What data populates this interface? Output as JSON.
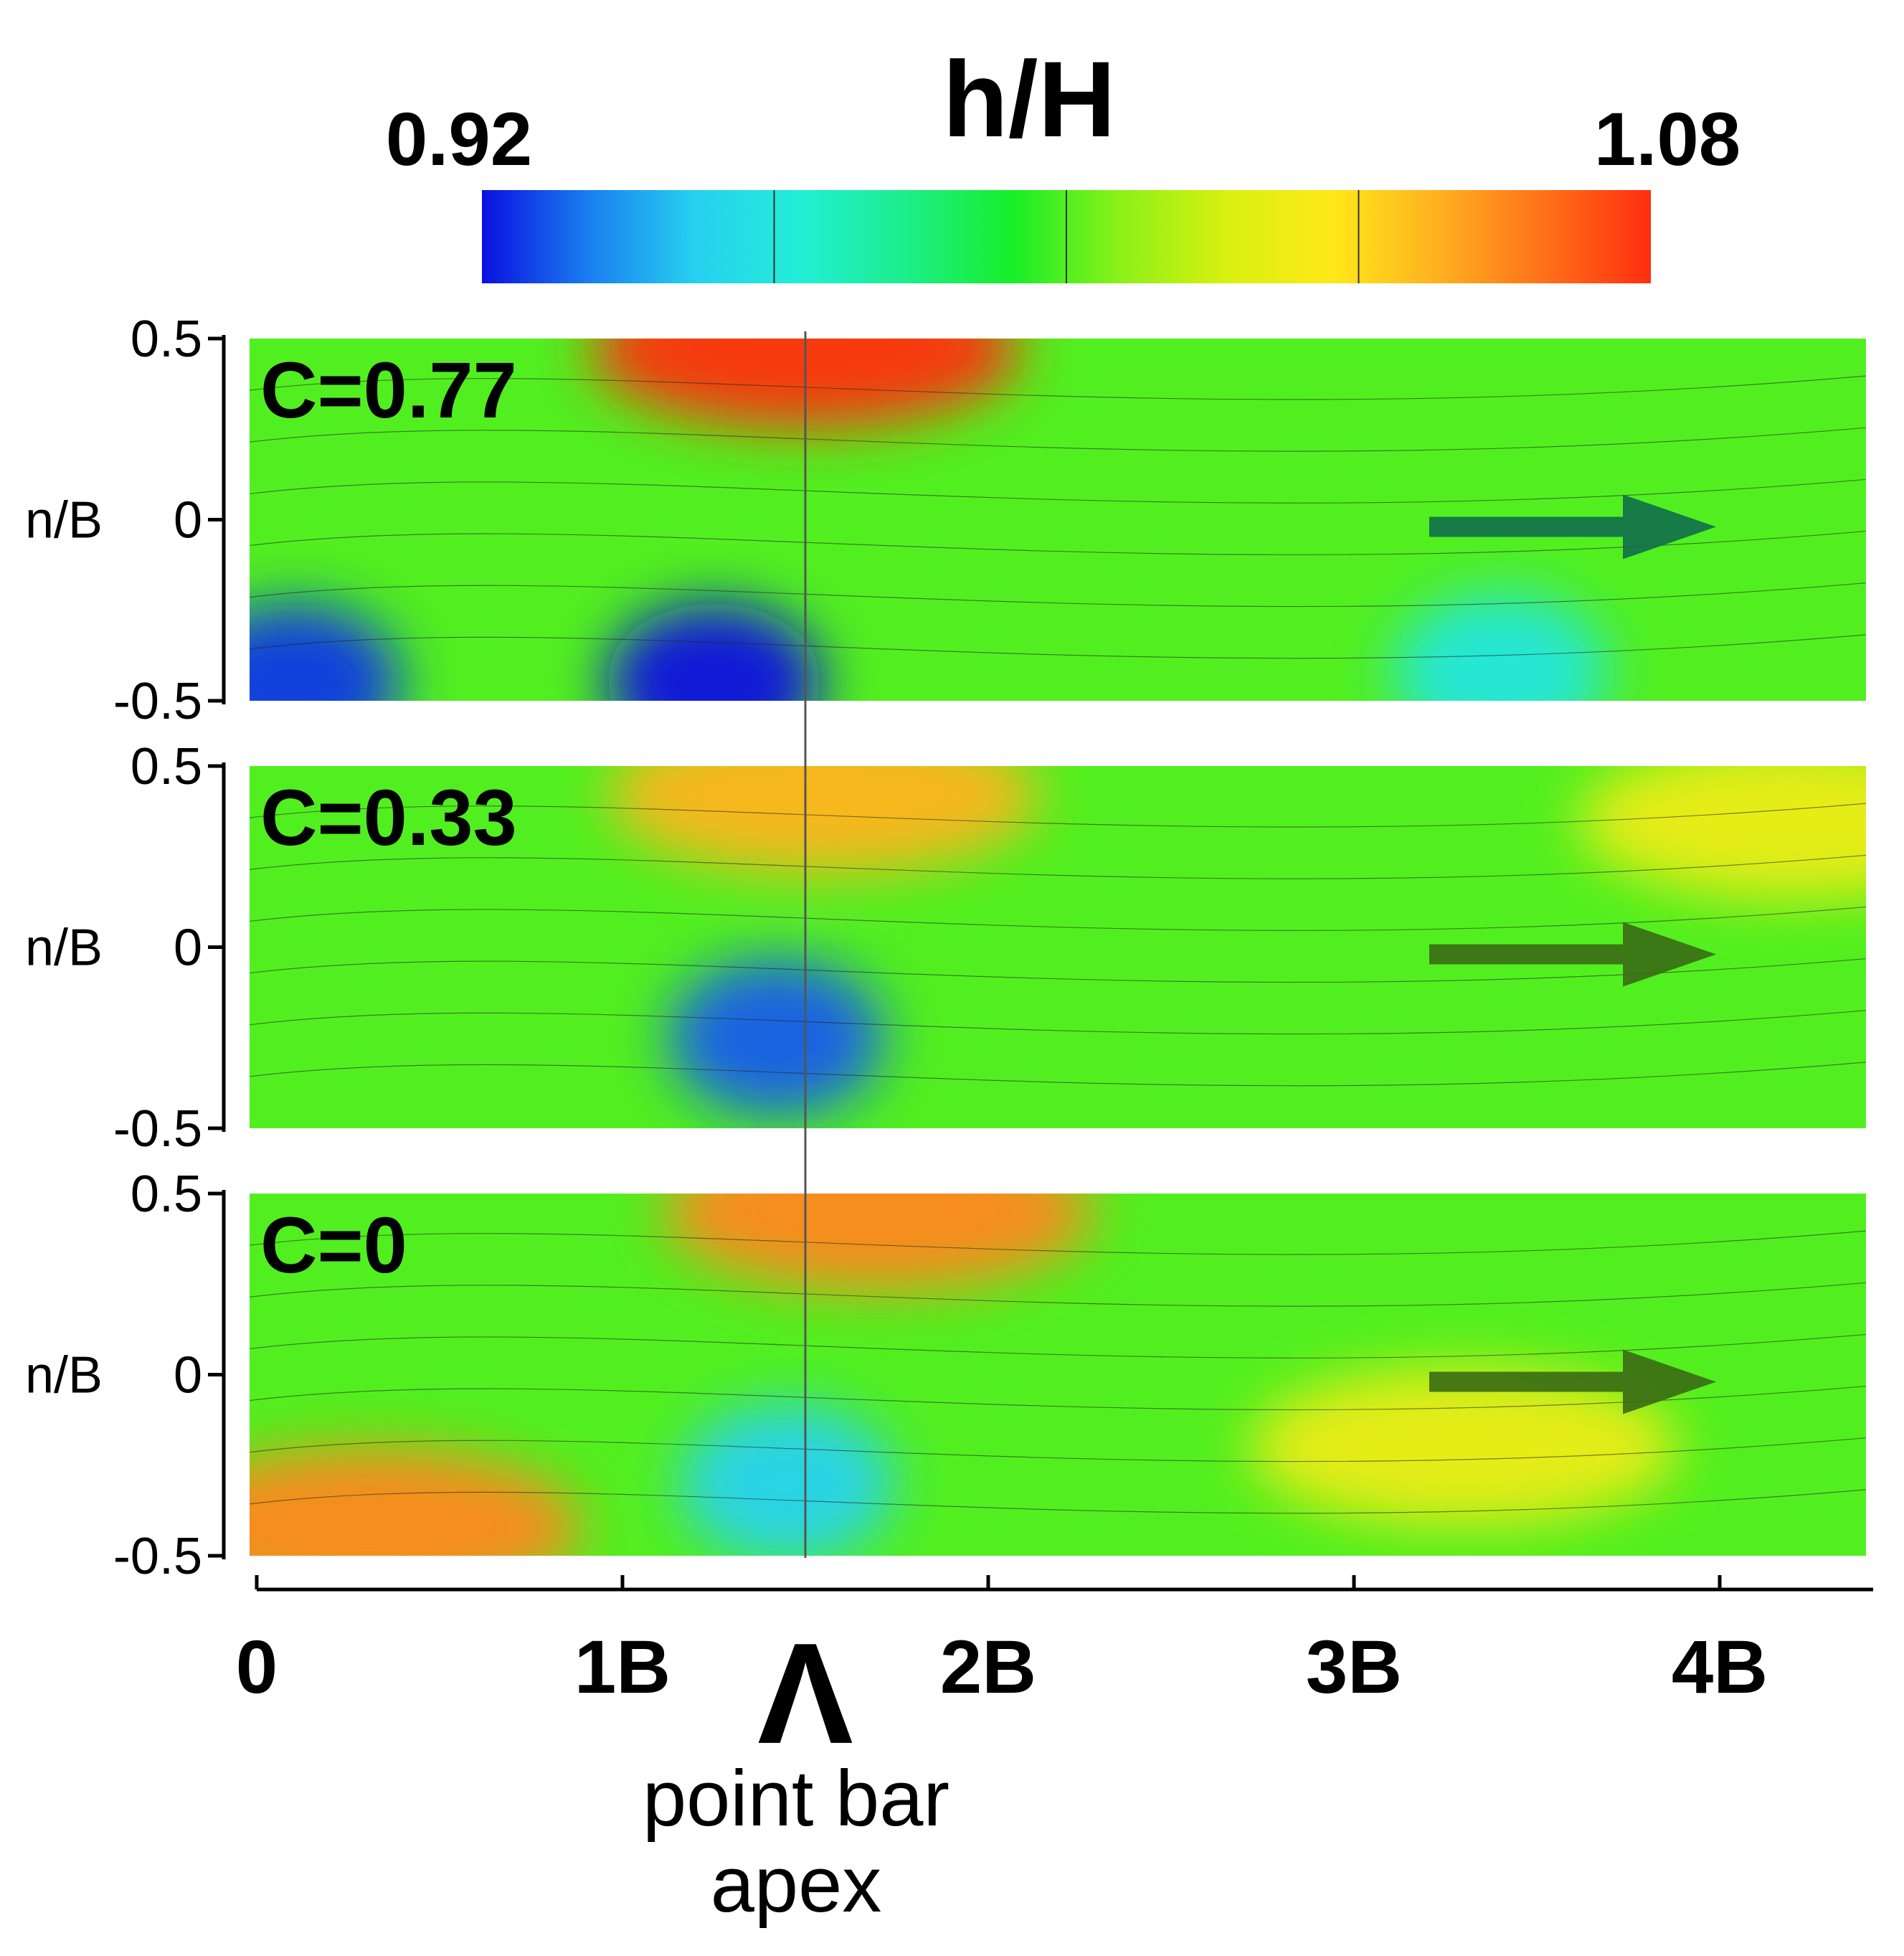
{
  "chart_data": {
    "type": "heatmap",
    "colorbar": {
      "title": "h/H",
      "min": 0.92,
      "max": 1.08,
      "min_label": "0.92",
      "max_label": "1.08",
      "colors": [
        "#0a10e0",
        "#1a7ef0",
        "#26d0f0",
        "#22eed6",
        "#1cee8a",
        "#18ee28",
        "#8cf018",
        "#d8f010",
        "#ffe818",
        "#ffb020",
        "#ff7018",
        "#ff2e10"
      ]
    },
    "x_ticks": [
      {
        "value": 0,
        "label": "0"
      },
      {
        "value": 1,
        "label": "1B"
      },
      {
        "value": 2,
        "label": "2B"
      },
      {
        "value": 3,
        "label": "3B"
      },
      {
        "value": 4,
        "label": "4B"
      }
    ],
    "xlim": [
      0,
      4.4
    ],
    "ylim": [
      -0.5,
      0.5
    ],
    "y_label": "n/B",
    "y_ticks": [
      {
        "value": 0.5,
        "label": "0.5"
      },
      {
        "value": 0,
        "label": "0"
      },
      {
        "value": -0.5,
        "label": "-0.5"
      }
    ],
    "apex_x": 1.5,
    "apex_annotation": {
      "symbol": "Λ",
      "line1": "point bar",
      "line2": "apex"
    },
    "flow_direction": "downstream (+s)",
    "panels": [
      {
        "label": "C=0.77",
        "C": 0.77,
        "features": [
          {
            "kind": "max",
            "s": 1.5,
            "n": 0.47,
            "h_over_H": 1.08
          },
          {
            "kind": "min",
            "s": 1.25,
            "n": -0.45,
            "h_over_H": 0.92
          },
          {
            "kind": "min",
            "s": 0.1,
            "n": -0.45,
            "h_over_H": 0.925
          },
          {
            "kind": "min",
            "s": 3.4,
            "n": -0.42,
            "h_over_H": 0.96
          }
        ]
      },
      {
        "label": "C=0.33",
        "C": 0.33,
        "features": [
          {
            "kind": "max",
            "s": 1.55,
            "n": 0.42,
            "h_over_H": 1.05
          },
          {
            "kind": "min",
            "s": 1.42,
            "n": -0.25,
            "h_over_H": 0.93
          },
          {
            "kind": "max",
            "s": 4.2,
            "n": 0.35,
            "h_over_H": 1.03
          }
        ]
      },
      {
        "label": "C=0",
        "C": 0,
        "features": [
          {
            "kind": "max",
            "s": 1.7,
            "n": 0.45,
            "h_over_H": 1.06
          },
          {
            "kind": "max",
            "s": 0.3,
            "n": -0.42,
            "h_over_H": 1.06
          },
          {
            "kind": "min",
            "s": 1.45,
            "n": -0.3,
            "h_over_H": 0.95
          },
          {
            "kind": "max",
            "s": 3.3,
            "n": -0.2,
            "h_over_H": 1.03
          }
        ]
      }
    ]
  }
}
